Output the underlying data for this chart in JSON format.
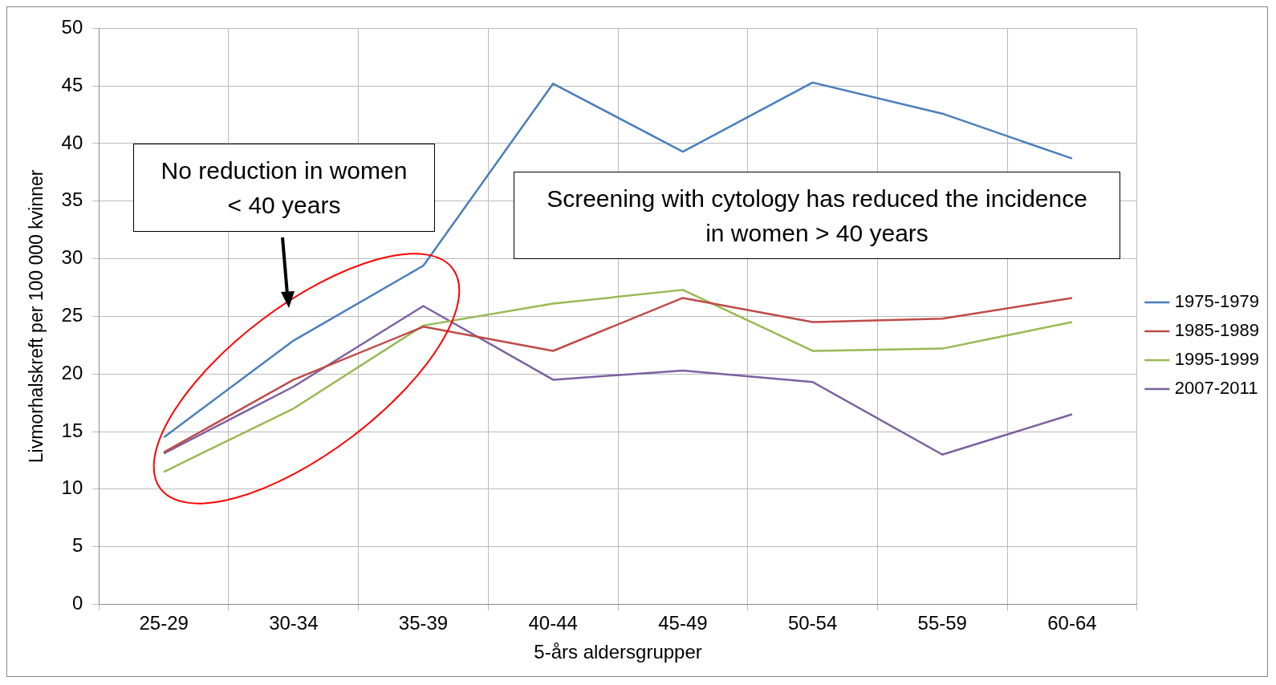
{
  "chart_data": {
    "type": "line",
    "xlabel": "5-års aldersgrupper",
    "ylabel": "Livmorhalskreft per 100 000 kvinner",
    "categories": [
      "25-29",
      "30-34",
      "35-39",
      "40-44",
      "45-49",
      "50-54",
      "55-59",
      "60-64"
    ],
    "series": [
      {
        "name": "1975-1979",
        "color": "#4a7ebb",
        "values": [
          14.5,
          22.9,
          29.4,
          45.2,
          39.3,
          45.3,
          42.6,
          38.7
        ]
      },
      {
        "name": "1985-1989",
        "color": "#be4b48",
        "values": [
          13.2,
          19.5,
          24.1,
          22.0,
          26.6,
          24.5,
          24.8,
          26.6
        ]
      },
      {
        "name": "1995-1999",
        "color": "#98b954",
        "values": [
          11.5,
          17.0,
          24.2,
          26.1,
          27.3,
          22.0,
          22.2,
          24.5
        ]
      },
      {
        "name": "2007-2011",
        "color": "#7d60a0",
        "values": [
          13.1,
          18.9,
          25.9,
          19.5,
          20.3,
          19.3,
          13.0,
          16.5
        ]
      }
    ],
    "ylim": [
      0,
      50
    ],
    "yticks": [
      0,
      5,
      10,
      15,
      20,
      25,
      30,
      35,
      40,
      45,
      50
    ],
    "grid": true,
    "legend": "right",
    "marker": "none",
    "line_style": "solid",
    "annotations": [
      "No reduction in women < 40 years",
      "Screening with cytology has reduced the incidence in women > 40 years"
    ]
  }
}
